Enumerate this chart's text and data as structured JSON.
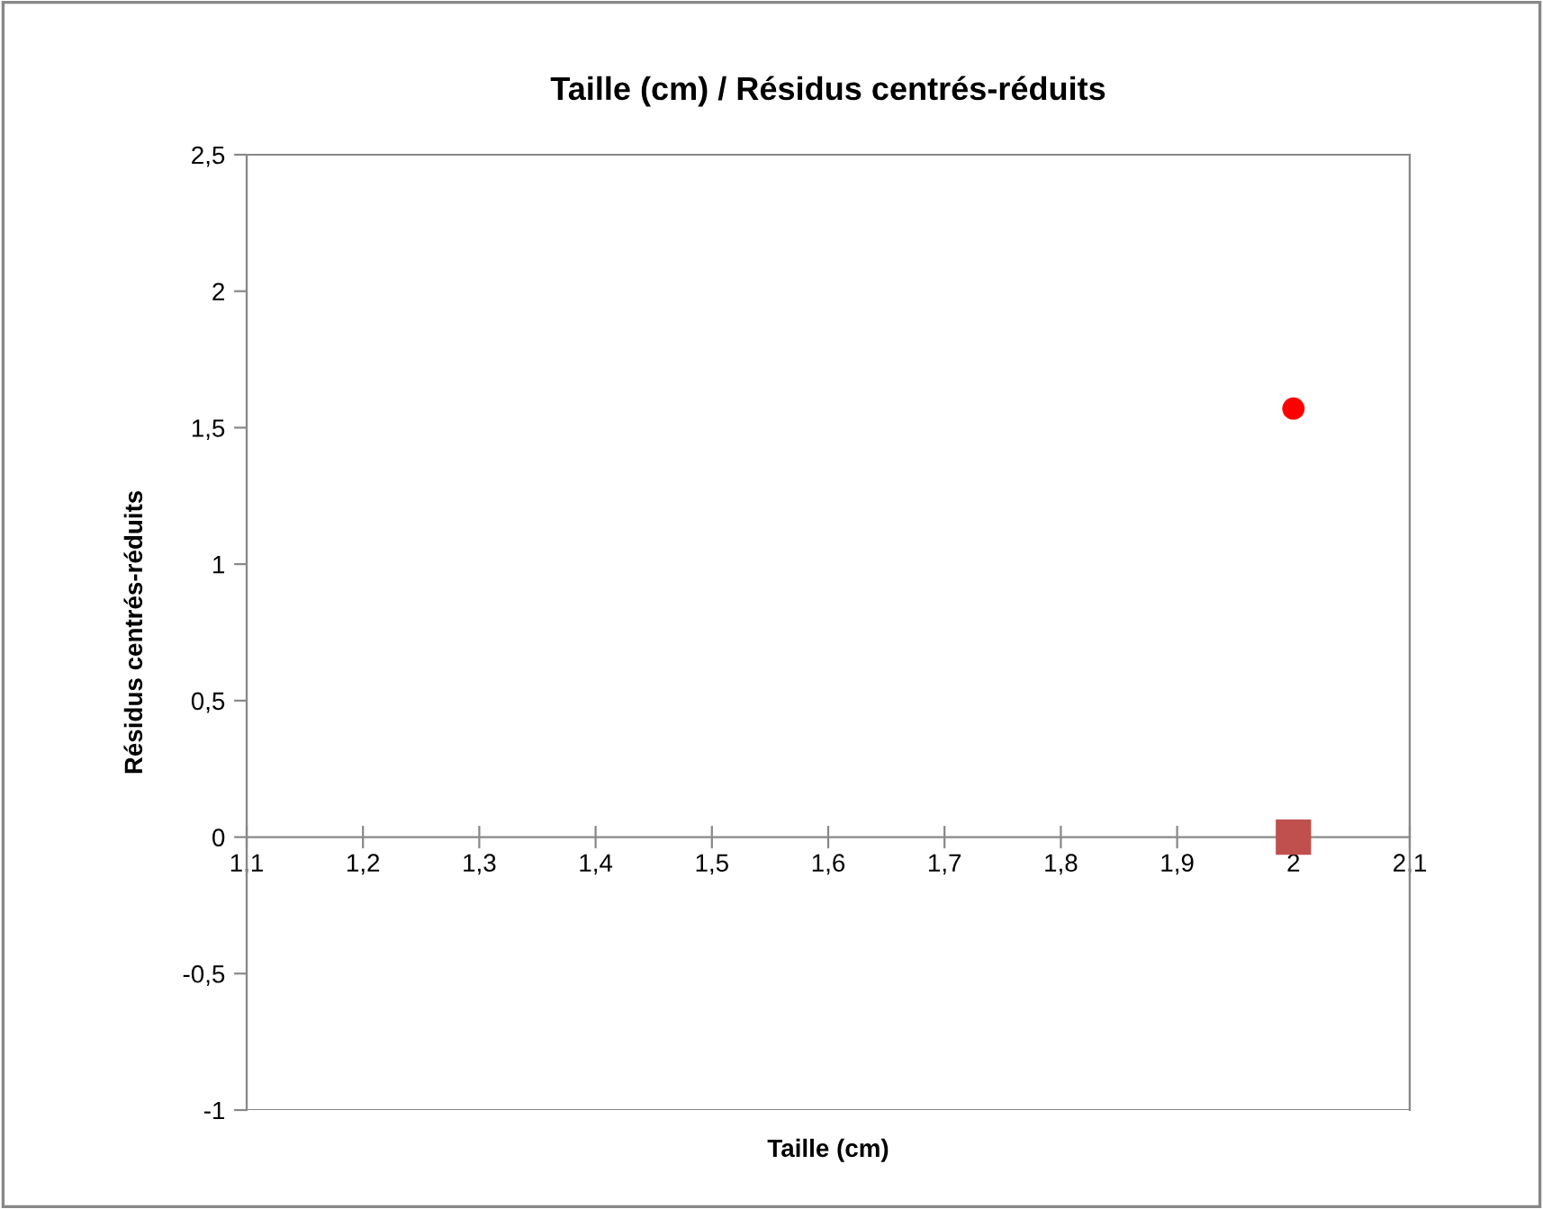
{
  "chart_data": {
    "type": "scatter",
    "title": "Taille (cm) / Résidus centrés-réduits",
    "xlabel": "Taille (cm)",
    "ylabel": "Résidus centrés-réduits",
    "xlim": [
      1.1,
      2.1
    ],
    "xticks": [
      {
        "value": 1.1,
        "label": "1,1"
      },
      {
        "value": 1.2,
        "label": "1,2"
      },
      {
        "value": 1.3,
        "label": "1,3"
      },
      {
        "value": 1.4,
        "label": "1,4"
      },
      {
        "value": 1.5,
        "label": "1,5"
      },
      {
        "value": 1.6,
        "label": "1,6"
      },
      {
        "value": 1.7,
        "label": "1,7"
      },
      {
        "value": 1.8,
        "label": "1,8"
      },
      {
        "value": 1.9,
        "label": "1,9"
      },
      {
        "value": 2,
        "label": "2"
      },
      {
        "value": 2.1,
        "label": "2,1"
      }
    ],
    "ylim": [
      -1,
      2.5
    ],
    "yticks": [
      -1,
      {
        "value": -0.5,
        "label": "-0,5"
      },
      0,
      {
        "value": 0.5,
        "label": "0,5"
      },
      1,
      {
        "value": 1.5,
        "label": "1,5"
      },
      2,
      {
        "value": 2.5,
        "label": "2,5"
      }
    ],
    "grid": false,
    "legend": false,
    "series": [
      {
        "color": "#ff0000",
        "marker": "circle",
        "x": [
          2
        ],
        "values": [
          1.57
        ]
      },
      {
        "color": "#c0504d",
        "marker": "square",
        "x": [
          2
        ],
        "values": [
          0
        ]
      }
    ]
  }
}
